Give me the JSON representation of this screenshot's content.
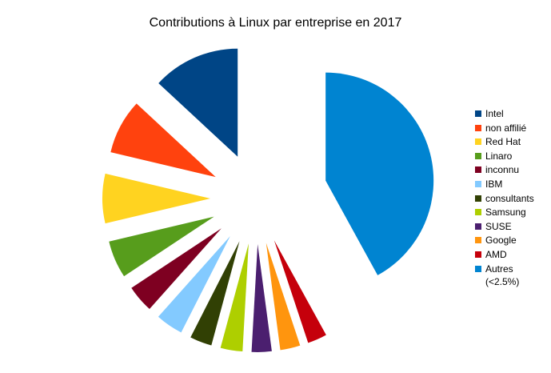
{
  "chart_data": {
    "type": "pie",
    "title": "Contributions à Linux par entreprise en 2017",
    "legend_position": "right",
    "exploded": true,
    "slices": [
      {
        "label": "Intel",
        "value": 13.1,
        "color": "#004586"
      },
      {
        "label": "non affilié",
        "value": 8.2,
        "color": "#ff420e"
      },
      {
        "label": "Red Hat",
        "value": 7.4,
        "color": "#ffd320"
      },
      {
        "label": "Linaro",
        "value": 5.6,
        "color": "#579d1c"
      },
      {
        "label": "inconnu",
        "value": 4.1,
        "color": "#7e0021"
      },
      {
        "label": "IBM",
        "value": 4.1,
        "color": "#83caff"
      },
      {
        "label": "consultants",
        "value": 3.3,
        "color": "#314004"
      },
      {
        "label": "Samsung",
        "value": 3.3,
        "color": "#aecf00"
      },
      {
        "label": "SUSE",
        "value": 3.0,
        "color": "#4b1f6f"
      },
      {
        "label": "Google",
        "value": 3.0,
        "color": "#ff950e"
      },
      {
        "label": "AMD",
        "value": 2.9,
        "color": "#c5000b"
      },
      {
        "label": "Autres\n(<2.5%)",
        "value": 42.0,
        "color": "#0084d1"
      }
    ]
  }
}
